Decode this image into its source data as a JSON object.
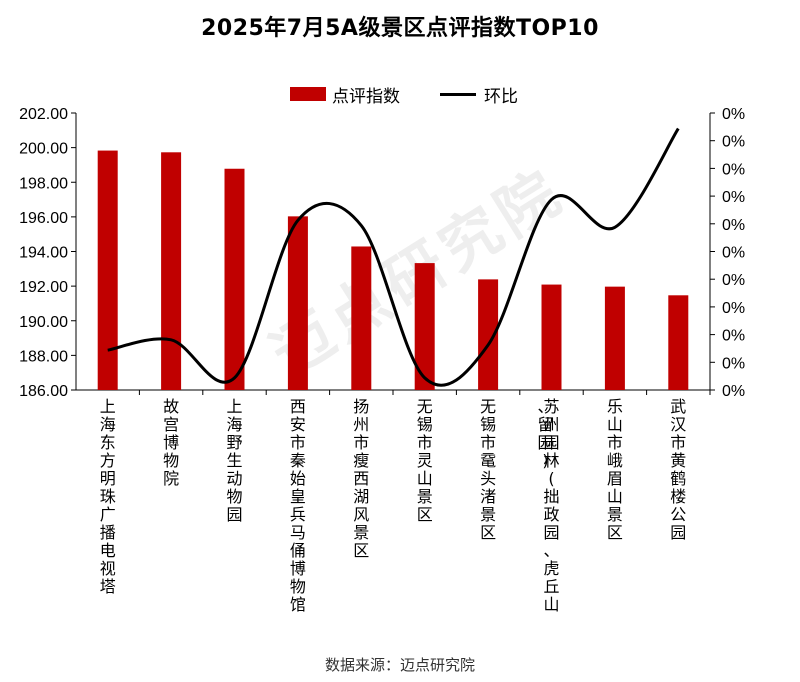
{
  "title": "2025年7月5A级景区点评指数TOP10",
  "legend": {
    "bar_label": "点评指数",
    "line_label": "环比"
  },
  "source": "数据来源：迈点研究院",
  "watermark": "迈点研究院",
  "colors": {
    "bar": "#c00000",
    "line": "#000000",
    "axis": "#000000"
  },
  "chart_data": {
    "type": "bar",
    "title": "2025年7月5A级景区点评指数TOP10",
    "categories": [
      "上海东方明珠广播电视塔",
      "故宫博物院",
      "上海野生动物园",
      "西安市秦始皇兵马俑博物馆",
      "扬州市瘦西湖风景区",
      "无锡市灵山景区",
      "无锡市鼋头渚景区",
      "苏州园林(拙政园、虎丘山、留园)",
      "乐山市峨眉山景区",
      "武汉市黄鹤楼公园"
    ],
    "series": [
      {
        "name": "点评指数",
        "type": "bar",
        "axis": "left",
        "values": [
          199.83,
          199.73,
          198.78,
          196.03,
          194.29,
          193.33,
          192.39,
          192.09,
          191.97,
          191.47
        ]
      },
      {
        "name": "环比",
        "type": "line",
        "axis": "right",
        "values": [
          188.3,
          188.9,
          186.7,
          195.8,
          195.5,
          186.7,
          188.6,
          197.0,
          195.4,
          201.1
        ]
      }
    ],
    "ylim_left": [
      186,
      202
    ],
    "yticks_left": [
      "186.00",
      "188.00",
      "190.00",
      "192.00",
      "194.00",
      "196.00",
      "198.00",
      "200.00",
      "202.00"
    ],
    "yticks_right": [
      "0%",
      "0%",
      "0%",
      "0%",
      "0%",
      "0%",
      "0%",
      "0%",
      "0%",
      "0%",
      "0%"
    ],
    "legend_position": "top-center",
    "grid": false
  }
}
